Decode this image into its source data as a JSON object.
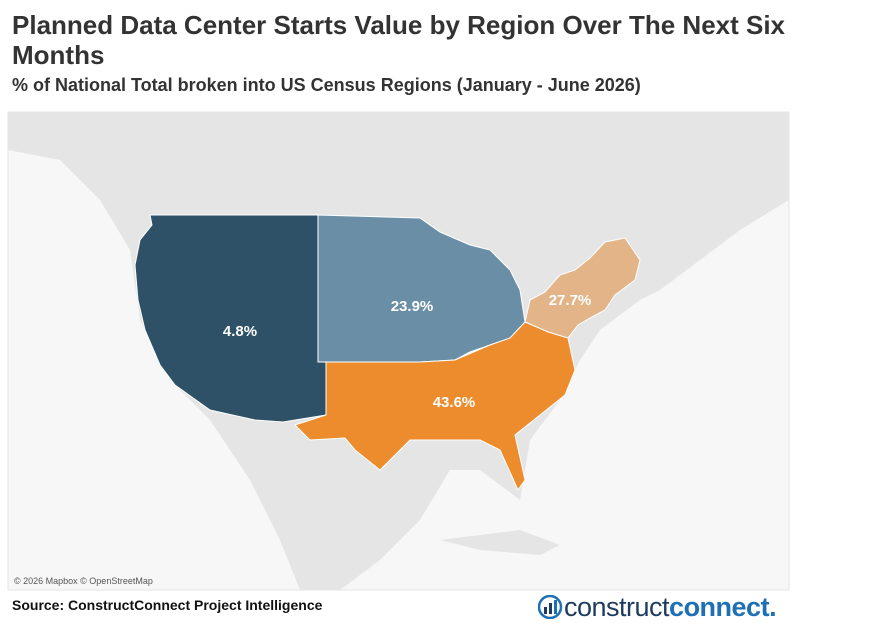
{
  "chart_data": {
    "type": "map",
    "title": "Planned Data Center Starts Value by Region Over The Next Six Months",
    "subtitle": "% of National Total broken into US Census Regions (January - June 2026)",
    "values": [
      4.8,
      23.9,
      27.7,
      43.6
    ],
    "value_labels": [
      "4.8%",
      "23.9%",
      "27.7%",
      "43.6%"
    ],
    "colors": [
      "#2e5167",
      "#6b8ea7",
      "#e2b487",
      "#ec8c2d"
    ],
    "attribution": "© 2026 Mapbox © OpenStreetMap",
    "source": "Source: ConstructConnect Project Intelligence",
    "logo": [
      "construct",
      "connect."
    ]
  }
}
